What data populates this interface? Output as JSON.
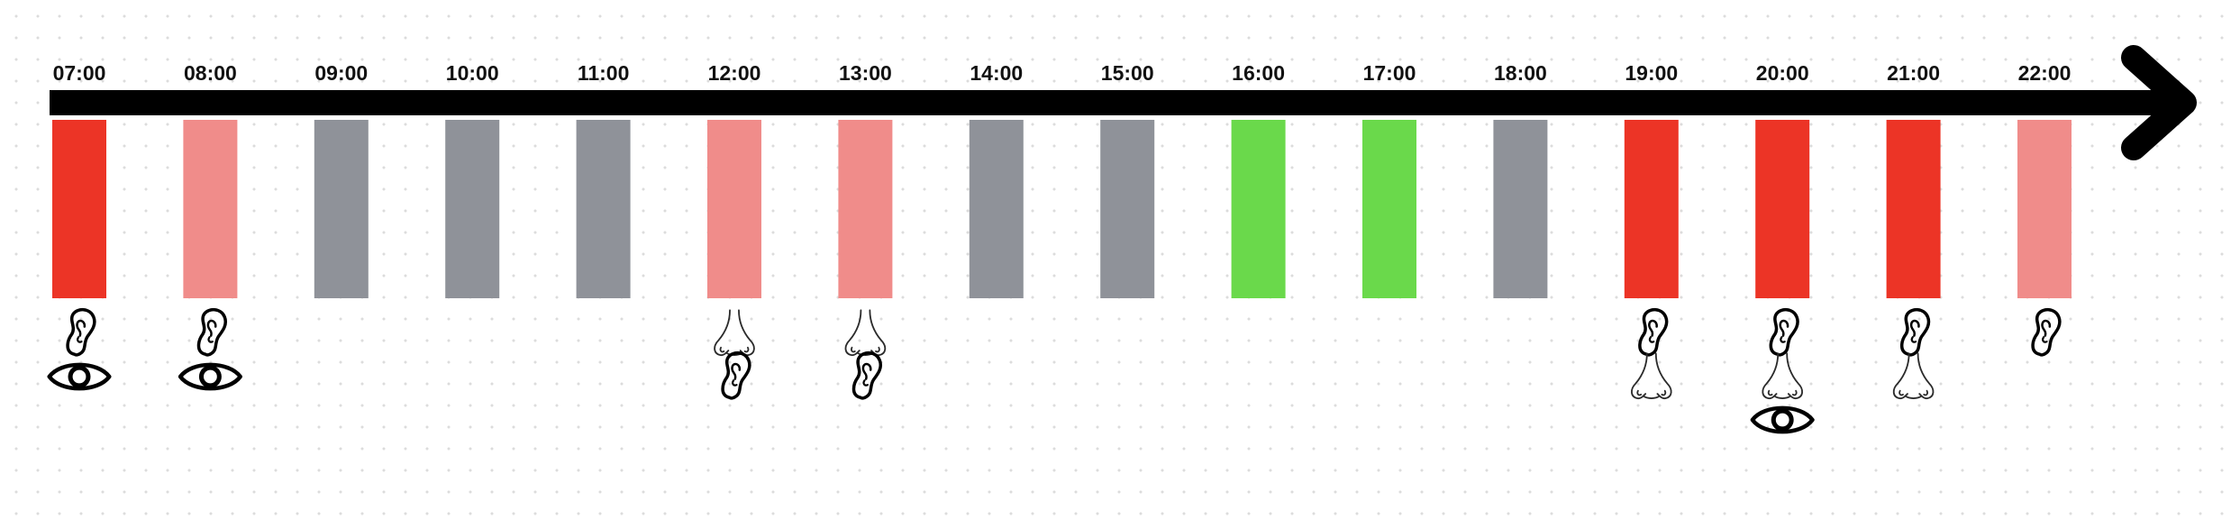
{
  "timeline": {
    "colors": {
      "red": "#ec3426",
      "pink": "#f08c8a",
      "gray": "#8f9299",
      "green": "#6ad94b",
      "arrow": "#000000"
    },
    "slots": [
      {
        "time": "07:00",
        "color": "red",
        "icons": [
          "ear-icon",
          "eye-icon"
        ]
      },
      {
        "time": "08:00",
        "color": "pink",
        "icons": [
          "ear-icon",
          "eye-icon"
        ]
      },
      {
        "time": "09:00",
        "color": "gray",
        "icons": []
      },
      {
        "time": "10:00",
        "color": "gray",
        "icons": []
      },
      {
        "time": "11:00",
        "color": "gray",
        "icons": []
      },
      {
        "time": "12:00",
        "color": "pink",
        "icons": [
          "nose-icon",
          "ear-icon"
        ]
      },
      {
        "time": "13:00",
        "color": "pink",
        "icons": [
          "nose-icon",
          "ear-icon"
        ]
      },
      {
        "time": "14:00",
        "color": "gray",
        "icons": []
      },
      {
        "time": "15:00",
        "color": "gray",
        "icons": []
      },
      {
        "time": "16:00",
        "color": "green",
        "icons": []
      },
      {
        "time": "17:00",
        "color": "green",
        "icons": []
      },
      {
        "time": "18:00",
        "color": "gray",
        "icons": []
      },
      {
        "time": "19:00",
        "color": "red",
        "icons": [
          "ear-icon",
          "nose-icon"
        ]
      },
      {
        "time": "20:00",
        "color": "red",
        "icons": [
          "ear-icon",
          "nose-icon",
          "eye-icon"
        ]
      },
      {
        "time": "21:00",
        "color": "red",
        "icons": [
          "ear-icon",
          "nose-icon"
        ]
      },
      {
        "time": "22:00",
        "color": "pink",
        "icons": [
          "ear-icon"
        ]
      }
    ]
  }
}
